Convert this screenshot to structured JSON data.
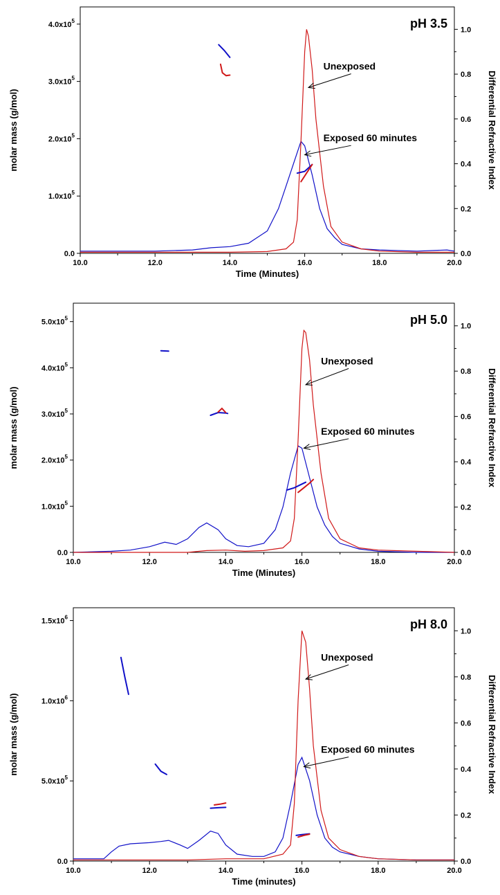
{
  "colors": {
    "exposed": "#1010c8",
    "unexposed": "#d01818",
    "axis": "#000000"
  },
  "chart_data": [
    {
      "type": "line",
      "title": "pH 3.5",
      "xlabel": "Time (Minutes)",
      "ylabel_left": "molar mass (g/mol)",
      "ylabel_right": "Differential Refractive Index",
      "xlim": [
        10,
        20
      ],
      "ylim_left": [
        0,
        430000
      ],
      "ylim_right": [
        0,
        1.1
      ],
      "x_ticks": [
        "10.0",
        "12.0",
        "14.0",
        "16.0",
        "18.0",
        "20.0"
      ],
      "y_left_ticks": [
        {
          "value": 0,
          "base": "0.0",
          "exp": ""
        },
        {
          "value": 100000,
          "base": "1.0x10",
          "exp": "5"
        },
        {
          "value": 200000,
          "base": "2.0x10",
          "exp": "5"
        },
        {
          "value": 300000,
          "base": "3.0x10",
          "exp": "5"
        },
        {
          "value": 400000,
          "base": "4.0x10",
          "exp": "5"
        }
      ],
      "y_right_ticks": [
        "0.0",
        "0.2",
        "0.4",
        "0.6",
        "0.8",
        "1.0"
      ],
      "annotations": [
        {
          "text": "Unexposed",
          "tx": 16.5,
          "ty": 0.82,
          "ax": 16.1,
          "ay": 0.74
        },
        {
          "text": "Exposed 60 minutes",
          "tx": 16.5,
          "ty": 0.5,
          "ax": 16.0,
          "ay": 0.44
        }
      ],
      "series": [
        {
          "name": "Exposed 60 minutes",
          "role": "dri",
          "x": [
            10.0,
            12.0,
            13.0,
            13.5,
            14.0,
            14.5,
            15.0,
            15.3,
            15.5,
            15.7,
            15.9,
            16.0,
            16.2,
            16.4,
            16.6,
            16.8,
            17.0,
            17.5,
            18.0,
            19.0,
            19.8,
            20.0
          ],
          "y": [
            0.01,
            0.01,
            0.015,
            0.025,
            0.03,
            0.045,
            0.1,
            0.2,
            0.3,
            0.4,
            0.5,
            0.48,
            0.35,
            0.2,
            0.11,
            0.07,
            0.04,
            0.02,
            0.015,
            0.01,
            0.015,
            0.01
          ]
        },
        {
          "name": "Unexposed",
          "role": "dri",
          "x": [
            10.0,
            14.0,
            15.0,
            15.5,
            15.7,
            15.8,
            15.9,
            16.0,
            16.05,
            16.1,
            16.2,
            16.3,
            16.5,
            16.7,
            17.0,
            17.5,
            18.0,
            19.0,
            20.0
          ],
          "y": [
            0.005,
            0.005,
            0.008,
            0.02,
            0.05,
            0.15,
            0.5,
            0.9,
            1.0,
            0.97,
            0.82,
            0.6,
            0.3,
            0.12,
            0.05,
            0.02,
            0.01,
            0.005,
            0.005
          ]
        },
        {
          "name": "",
          "role": "mass",
          "color": "exposed",
          "x": [
            13.7,
            13.85,
            14.0
          ],
          "y": [
            364000,
            354000,
            342000
          ]
        },
        {
          "name": "",
          "role": "mass",
          "color": "unexposed",
          "x": [
            13.75,
            13.8,
            13.9,
            14.0
          ],
          "y": [
            330000,
            315000,
            310000,
            311000
          ]
        },
        {
          "name": "",
          "role": "mass",
          "color": "exposed",
          "x": [
            15.8,
            16.0,
            16.2
          ],
          "y": [
            140000,
            143000,
            155000
          ]
        },
        {
          "name": "",
          "role": "mass",
          "color": "unexposed",
          "x": [
            15.9,
            16.05,
            16.2
          ],
          "y": [
            125000,
            140000,
            155000
          ]
        }
      ]
    },
    {
      "type": "line",
      "title": "pH 5.0",
      "xlabel": "Time (Minutes)",
      "ylabel_left": "molar mass (g/mol)",
      "ylabel_right": "Differential Refractive Index",
      "xlim": [
        10,
        20
      ],
      "ylim_left": [
        0,
        540000
      ],
      "ylim_right": [
        0,
        1.1
      ],
      "x_ticks": [
        "10.0",
        "12.0",
        "14.0",
        "16.0",
        "18.0",
        "20.0"
      ],
      "y_left_ticks": [
        {
          "value": 0,
          "base": "0.0",
          "exp": ""
        },
        {
          "value": 100000,
          "base": "1.0x10",
          "exp": "5"
        },
        {
          "value": 200000,
          "base": "2.0x10",
          "exp": "5"
        },
        {
          "value": 300000,
          "base": "3.0x10",
          "exp": "5"
        },
        {
          "value": 400000,
          "base": "4.0x10",
          "exp": "5"
        },
        {
          "value": 500000,
          "base": "5.0x10",
          "exp": "5"
        }
      ],
      "y_right_ticks": [
        "0.0",
        "0.2",
        "0.4",
        "0.6",
        "0.8",
        "1.0"
      ],
      "annotations": [
        {
          "text": "Unexposed",
          "tx": 16.5,
          "ty": 0.83,
          "ax": 16.1,
          "ay": 0.74
        },
        {
          "text": "Exposed 60 minutes",
          "tx": 16.5,
          "ty": 0.52,
          "ax": 16.05,
          "ay": 0.46
        }
      ],
      "series": [
        {
          "name": "Exposed 60 minutes",
          "role": "dri",
          "x": [
            10.0,
            11.0,
            11.5,
            12.0,
            12.4,
            12.7,
            13.0,
            13.3,
            13.5,
            13.8,
            14.0,
            14.3,
            14.6,
            15.0,
            15.3,
            15.5,
            15.7,
            15.9,
            16.0,
            16.2,
            16.4,
            16.6,
            16.8,
            17.0,
            17.5,
            18.0,
            19.0,
            20.0
          ],
          "y": [
            0.0,
            0.005,
            0.01,
            0.025,
            0.045,
            0.035,
            0.06,
            0.11,
            0.13,
            0.1,
            0.06,
            0.03,
            0.025,
            0.04,
            0.1,
            0.2,
            0.35,
            0.47,
            0.46,
            0.33,
            0.2,
            0.12,
            0.07,
            0.04,
            0.015,
            0.005,
            0.0,
            0.0
          ]
        },
        {
          "name": "Unexposed",
          "role": "dri",
          "x": [
            10.0,
            13.0,
            13.5,
            14.0,
            14.5,
            15.0,
            15.5,
            15.7,
            15.8,
            15.9,
            16.0,
            16.05,
            16.1,
            16.2,
            16.3,
            16.5,
            16.7,
            17.0,
            17.5,
            18.0,
            19.0,
            20.0
          ],
          "y": [
            0.0,
            0.0,
            0.008,
            0.01,
            0.005,
            0.008,
            0.02,
            0.05,
            0.15,
            0.5,
            0.9,
            0.98,
            0.97,
            0.85,
            0.65,
            0.35,
            0.15,
            0.06,
            0.02,
            0.01,
            0.005,
            0.0
          ]
        },
        {
          "name": "",
          "role": "mass",
          "color": "exposed",
          "x": [
            12.3,
            12.5
          ],
          "y": [
            437000,
            436000
          ]
        },
        {
          "name": "",
          "role": "mass",
          "color": "exposed",
          "x": [
            13.6,
            13.8,
            14.0,
            14.05
          ],
          "y": [
            297000,
            303000,
            302000,
            301000
          ]
        },
        {
          "name": "",
          "role": "mass",
          "color": "unexposed",
          "x": [
            13.8,
            13.9,
            14.0
          ],
          "y": [
            304000,
            312000,
            303000
          ]
        },
        {
          "name": "",
          "role": "mass",
          "color": "exposed",
          "x": [
            15.6,
            15.8,
            16.0,
            16.1
          ],
          "y": [
            135000,
            140000,
            148000,
            152000
          ]
        },
        {
          "name": "",
          "role": "mass",
          "color": "unexposed",
          "x": [
            15.9,
            16.05,
            16.2,
            16.3
          ],
          "y": [
            130000,
            140000,
            150000,
            158000
          ]
        }
      ]
    },
    {
      "type": "line",
      "title": "pH 8.0",
      "xlabel": "Time (minutes)",
      "ylabel_left": "molar mass (g/mol)",
      "ylabel_right": "Differential Refractive Index",
      "xlim": [
        10,
        20
      ],
      "ylim_left": [
        0,
        1580000
      ],
      "ylim_right": [
        0,
        1.1
      ],
      "x_ticks": [
        "10.0",
        "12.0",
        "14.0",
        "16.0",
        "18.0",
        "20.0"
      ],
      "y_left_ticks": [
        {
          "value": 0,
          "base": "0.0",
          "exp": ""
        },
        {
          "value": 500000,
          "base": "5.0x10",
          "exp": "5"
        },
        {
          "value": 1000000,
          "base": "1.0x10",
          "exp": "6"
        },
        {
          "value": 1500000,
          "base": "1.5x10",
          "exp": "6"
        }
      ],
      "y_right_ticks": [
        "0.0",
        "0.2",
        "0.4",
        "0.6",
        "0.8",
        "1.0"
      ],
      "annotations": [
        {
          "text": "Unexposed",
          "tx": 16.5,
          "ty": 0.87,
          "ax": 16.1,
          "ay": 0.79
        },
        {
          "text": "Exposed 60 minutes",
          "tx": 16.5,
          "ty": 0.47,
          "ax": 16.05,
          "ay": 0.41
        }
      ],
      "series": [
        {
          "name": "Exposed 60 minutes",
          "role": "dri",
          "x": [
            10.0,
            10.8,
            11.0,
            11.2,
            11.5,
            12.0,
            12.3,
            12.5,
            12.8,
            13.0,
            13.3,
            13.6,
            13.8,
            14.0,
            14.3,
            14.7,
            15.0,
            15.3,
            15.5,
            15.7,
            15.9,
            16.0,
            16.2,
            16.4,
            16.6,
            16.8,
            17.0,
            17.5,
            18.0,
            19.0,
            20.0
          ],
          "y": [
            0.01,
            0.01,
            0.04,
            0.065,
            0.075,
            0.08,
            0.085,
            0.09,
            0.07,
            0.055,
            0.09,
            0.13,
            0.12,
            0.07,
            0.03,
            0.02,
            0.02,
            0.04,
            0.1,
            0.25,
            0.42,
            0.45,
            0.35,
            0.2,
            0.1,
            0.06,
            0.04,
            0.02,
            0.01,
            0.005,
            0.005
          ]
        },
        {
          "name": "Unexposed",
          "role": "dri",
          "x": [
            10.0,
            13.0,
            14.0,
            15.0,
            15.5,
            15.7,
            15.8,
            15.9,
            16.0,
            16.1,
            16.2,
            16.3,
            16.5,
            16.7,
            17.0,
            17.5,
            18.0,
            19.0,
            20.0
          ],
          "y": [
            0.005,
            0.005,
            0.01,
            0.01,
            0.03,
            0.07,
            0.25,
            0.7,
            1.0,
            0.95,
            0.75,
            0.5,
            0.22,
            0.1,
            0.05,
            0.02,
            0.01,
            0.005,
            0.005
          ]
        },
        {
          "name": "",
          "role": "mass",
          "color": "exposed",
          "x": [
            11.25,
            11.35,
            11.45
          ],
          "y": [
            1270000,
            1150000,
            1040000
          ]
        },
        {
          "name": "",
          "role": "mass",
          "color": "exposed",
          "x": [
            12.15,
            12.3,
            12.45
          ],
          "y": [
            605000,
            560000,
            540000
          ]
        },
        {
          "name": "",
          "role": "mass",
          "color": "exposed",
          "x": [
            13.6,
            13.8,
            14.0
          ],
          "y": [
            330000,
            333000,
            335000
          ]
        },
        {
          "name": "",
          "role": "mass",
          "color": "unexposed",
          "x": [
            13.7,
            13.85,
            14.0
          ],
          "y": [
            350000,
            355000,
            362000
          ]
        },
        {
          "name": "",
          "role": "mass",
          "color": "exposed",
          "x": [
            15.85,
            16.0,
            16.2
          ],
          "y": [
            160000,
            165000,
            170000
          ]
        },
        {
          "name": "",
          "role": "mass",
          "color": "unexposed",
          "x": [
            15.9,
            16.05,
            16.2
          ],
          "y": [
            150000,
            160000,
            168000
          ]
        }
      ]
    }
  ]
}
